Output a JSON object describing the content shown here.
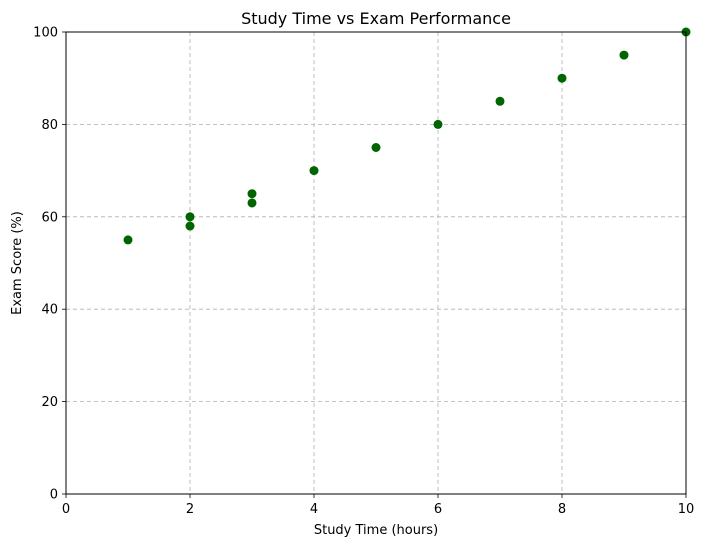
{
  "chart_data": {
    "type": "scatter",
    "title": "Study Time vs Exam Performance",
    "xlabel": "Study Time (hours)",
    "ylabel": "Exam Score (%)",
    "xlim": [
      0,
      10
    ],
    "ylim": [
      0,
      100
    ],
    "xticks": [
      0,
      2,
      4,
      6,
      8,
      10
    ],
    "yticks": [
      0,
      20,
      40,
      60,
      80,
      100
    ],
    "grid": true,
    "marker_color": "#006400",
    "series": [
      {
        "x": [
          1,
          2,
          2,
          3,
          3,
          4,
          5,
          6,
          7,
          8,
          9,
          10
        ],
        "y": [
          55,
          60,
          58,
          65,
          63,
          70,
          75,
          80,
          85,
          90,
          95,
          100
        ]
      }
    ]
  }
}
